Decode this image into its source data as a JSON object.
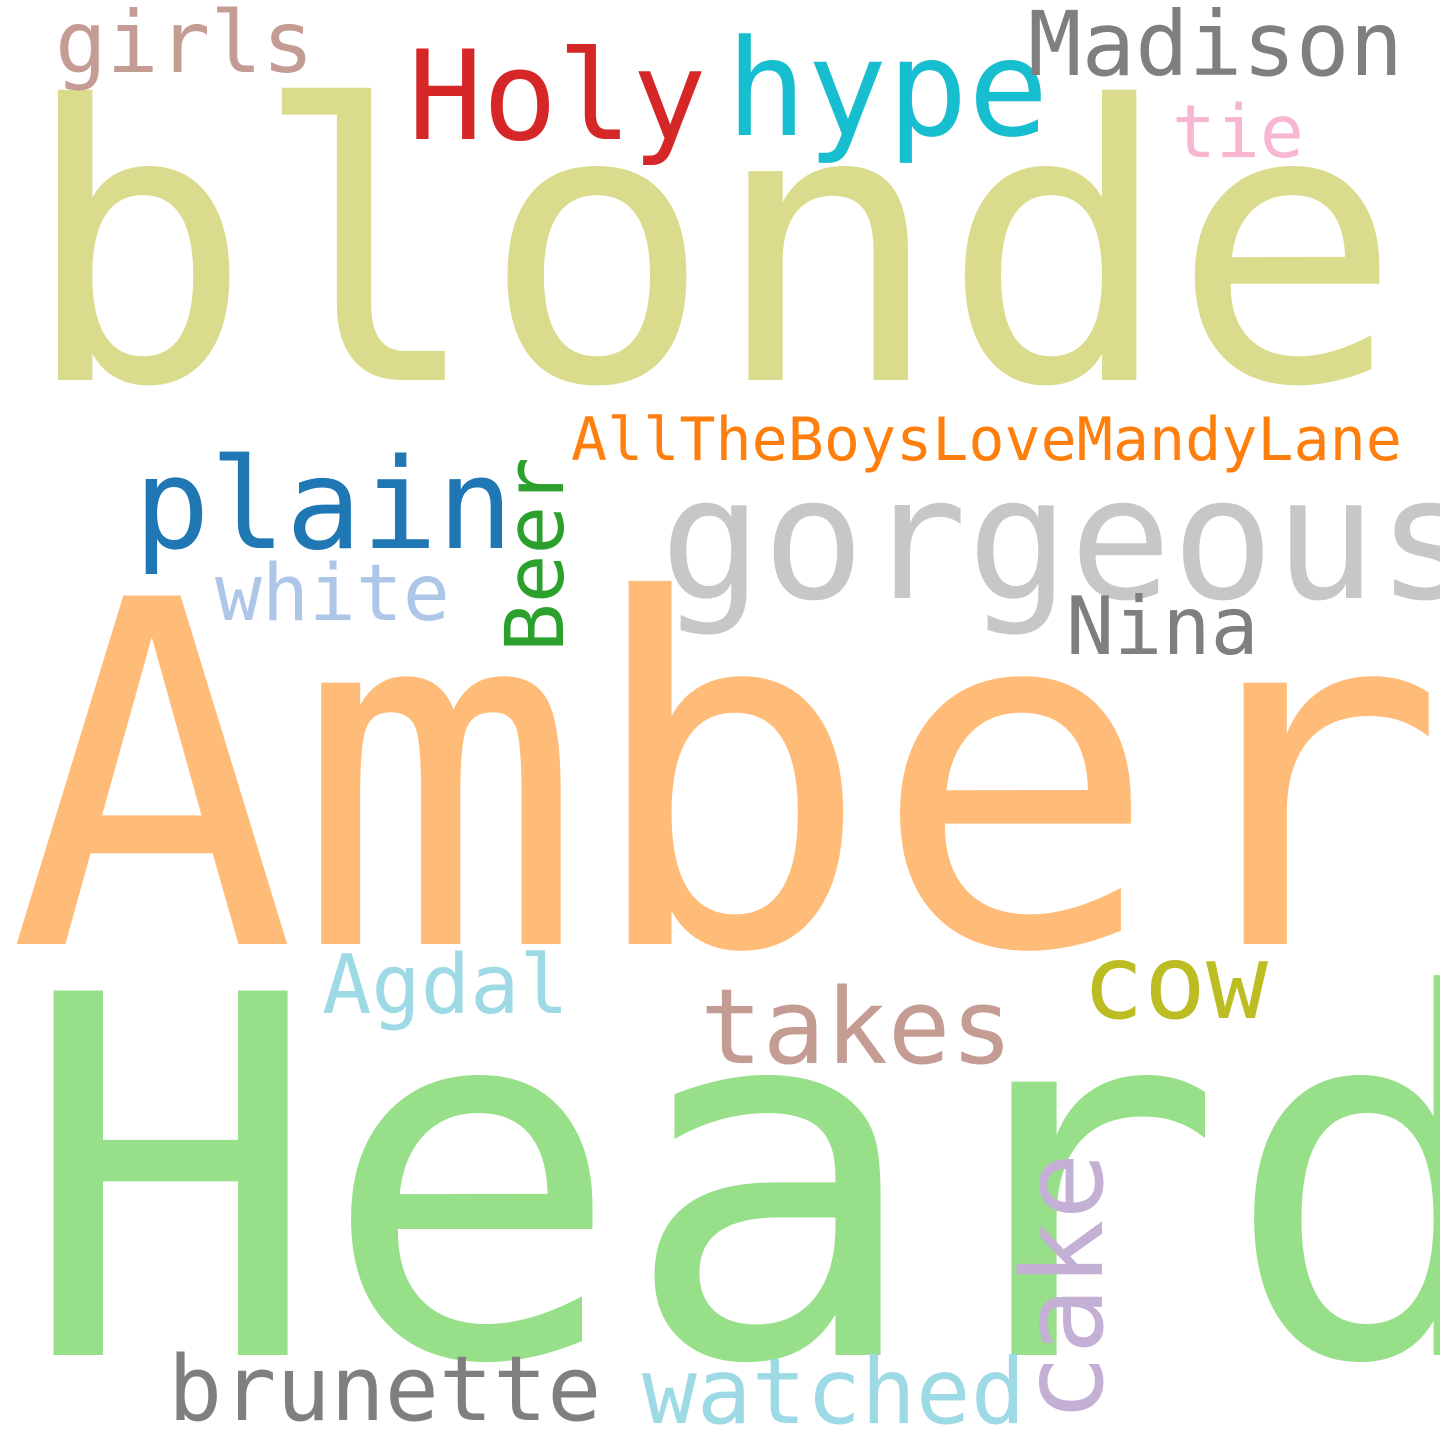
{
  "words": [
    {
      "id": "blonde",
      "text": "blonde",
      "color": "#dbdb8d"
    },
    {
      "id": "amber",
      "text": "Amber",
      "color": "#ffbb78"
    },
    {
      "id": "heard",
      "text": "Heard",
      "color": "#98df8a"
    },
    {
      "id": "gorgeous",
      "text": "gorgeous",
      "color": "#c7c7c7"
    },
    {
      "id": "holy",
      "text": "Holy",
      "color": "#d62728"
    },
    {
      "id": "hype",
      "text": "hype",
      "color": "#17becf"
    },
    {
      "id": "madison",
      "text": "Madison",
      "color": "#7f7f7f"
    },
    {
      "id": "girls",
      "text": "girls",
      "color": "#c49c94"
    },
    {
      "id": "tie",
      "text": "tie",
      "color": "#f7b6d2"
    },
    {
      "id": "plain",
      "text": "plain",
      "color": "#1f77b4"
    },
    {
      "id": "alltheboys",
      "text": "AllTheBoysLoveMandyLane",
      "color": "#ff7f0e"
    },
    {
      "id": "beer",
      "text": "Beer",
      "color": "#2ca02c"
    },
    {
      "id": "white",
      "text": "white",
      "color": "#aec7e8"
    },
    {
      "id": "nina",
      "text": "Nina",
      "color": "#7f7f7f"
    },
    {
      "id": "cow",
      "text": "cow",
      "color": "#bcbd22"
    },
    {
      "id": "agdal",
      "text": "Agdal",
      "color": "#9edae5"
    },
    {
      "id": "takes",
      "text": "takes",
      "color": "#c49c94"
    },
    {
      "id": "cake",
      "text": "cake",
      "color": "#c5b0d5"
    },
    {
      "id": "brunette",
      "text": "brunette",
      "color": "#7f7f7f"
    },
    {
      "id": "watched",
      "text": "watched",
      "color": "#9edae5"
    }
  ]
}
